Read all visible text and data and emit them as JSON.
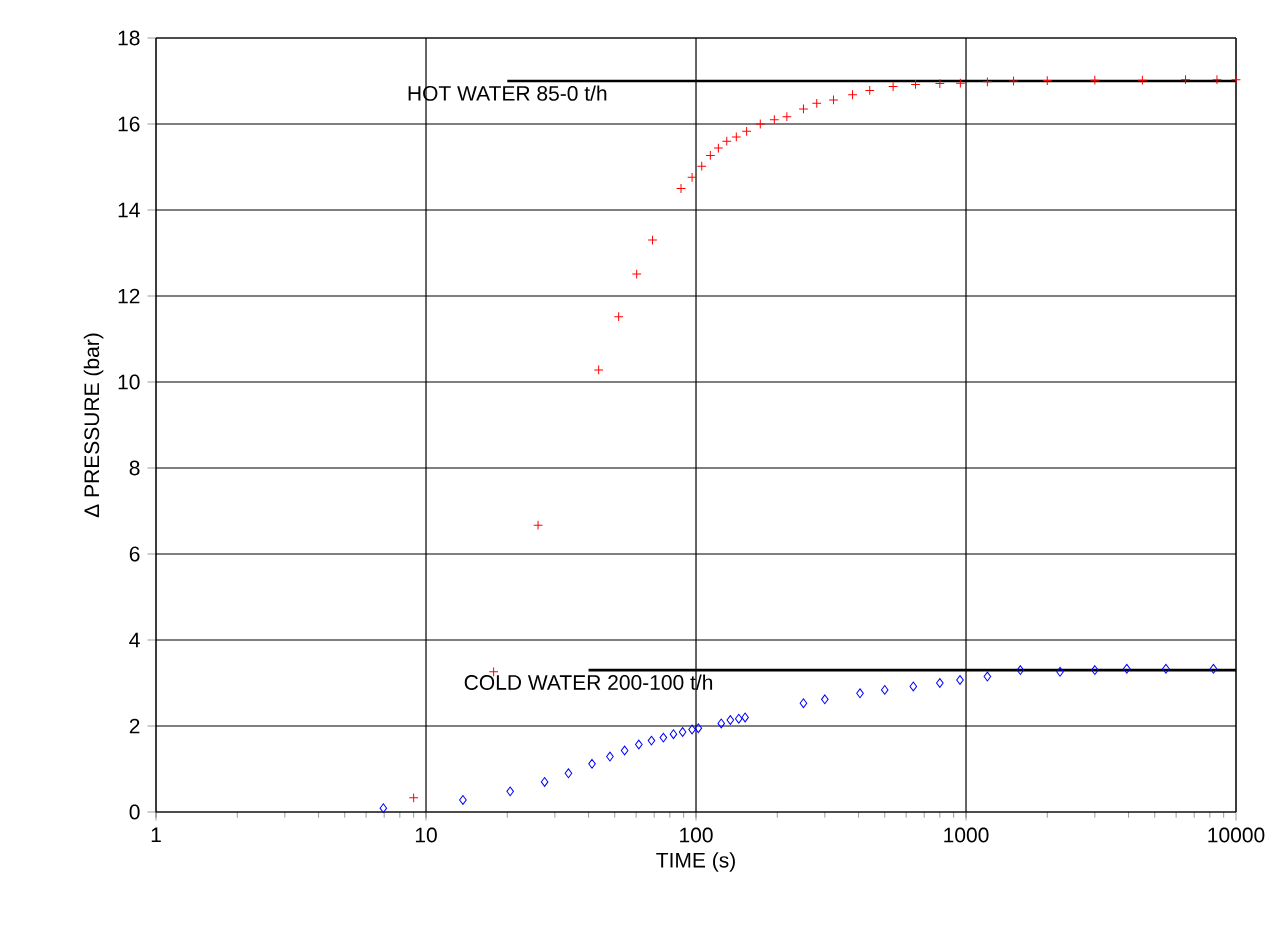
{
  "chart_data": {
    "type": "scatter",
    "xlabel": "TIME  (s)",
    "ylabel": "Δ PRESSURE (bar)",
    "log": "x",
    "grid": true,
    "xlim": [
      1,
      10000
    ],
    "xticks": [
      1,
      10,
      100,
      1000,
      10000
    ],
    "ylim": [
      0,
      18
    ],
    "yticks": [
      0,
      2,
      4,
      6,
      8,
      10,
      12,
      14,
      16,
      18
    ],
    "series": [
      {
        "color": "#ff0000",
        "marker": "cross",
        "x": [
          9,
          17.8,
          26,
          43.6,
          51.7,
          60.3,
          69,
          88,
          96.7,
          105,
          113,
          121,
          130,
          141,
          154,
          173,
          195,
          217,
          250,
          280,
          323,
          380,
          440,
          537,
          650,
          800,
          953,
          1200,
          1500,
          2000,
          3000,
          4500,
          6500,
          8500,
          10000
        ],
        "values": [
          0.33,
          3.26,
          6.67,
          10.28,
          11.52,
          12.51,
          13.3,
          14.5,
          14.76,
          15.02,
          15.27,
          15.44,
          15.6,
          15.7,
          15.83,
          16.0,
          16.1,
          16.17,
          16.35,
          16.48,
          16.56,
          16.68,
          16.78,
          16.87,
          16.92,
          16.94,
          16.95,
          16.98,
          17.0,
          17.01,
          17.02,
          17.02,
          17.03,
          17.03,
          17.03
        ]
      },
      {
        "color": "#0000ff",
        "marker": "diamond",
        "x": [
          6.95,
          13.7,
          20.5,
          27.5,
          33.7,
          41.2,
          48,
          54.4,
          61.4,
          68.4,
          75.7,
          82.5,
          89.2,
          96.7,
          102,
          124,
          134,
          144,
          152,
          250,
          300,
          405,
          500,
          638,
          800,
          950,
          1200,
          1590,
          2230,
          3000,
          3940,
          5500,
          8250
        ],
        "values": [
          0.09,
          0.28,
          0.48,
          0.7,
          0.9,
          1.12,
          1.29,
          1.43,
          1.57,
          1.66,
          1.73,
          1.81,
          1.86,
          1.92,
          1.95,
          2.06,
          2.14,
          2.17,
          2.2,
          2.53,
          2.62,
          2.76,
          2.84,
          2.92,
          3.0,
          3.07,
          3.15,
          3.3,
          3.26,
          3.3,
          3.33,
          3.33,
          3.33
        ]
      },
      {
        "type": "line",
        "color": "#000000",
        "marker": "none",
        "x": [
          20,
          10000
        ],
        "values": [
          17,
          17
        ]
      },
      {
        "type": "line",
        "color": "#000000",
        "marker": "none",
        "x": [
          40,
          10000
        ],
        "values": [
          3.3,
          3.3
        ]
      }
    ],
    "annotations": [
      {
        "text": "HOT WATER 85-0  t/h",
        "x": 20,
        "y": 17
      },
      {
        "text": "COLD WATER  200-100  t/h",
        "x": 40,
        "y": 3.3
      }
    ]
  }
}
